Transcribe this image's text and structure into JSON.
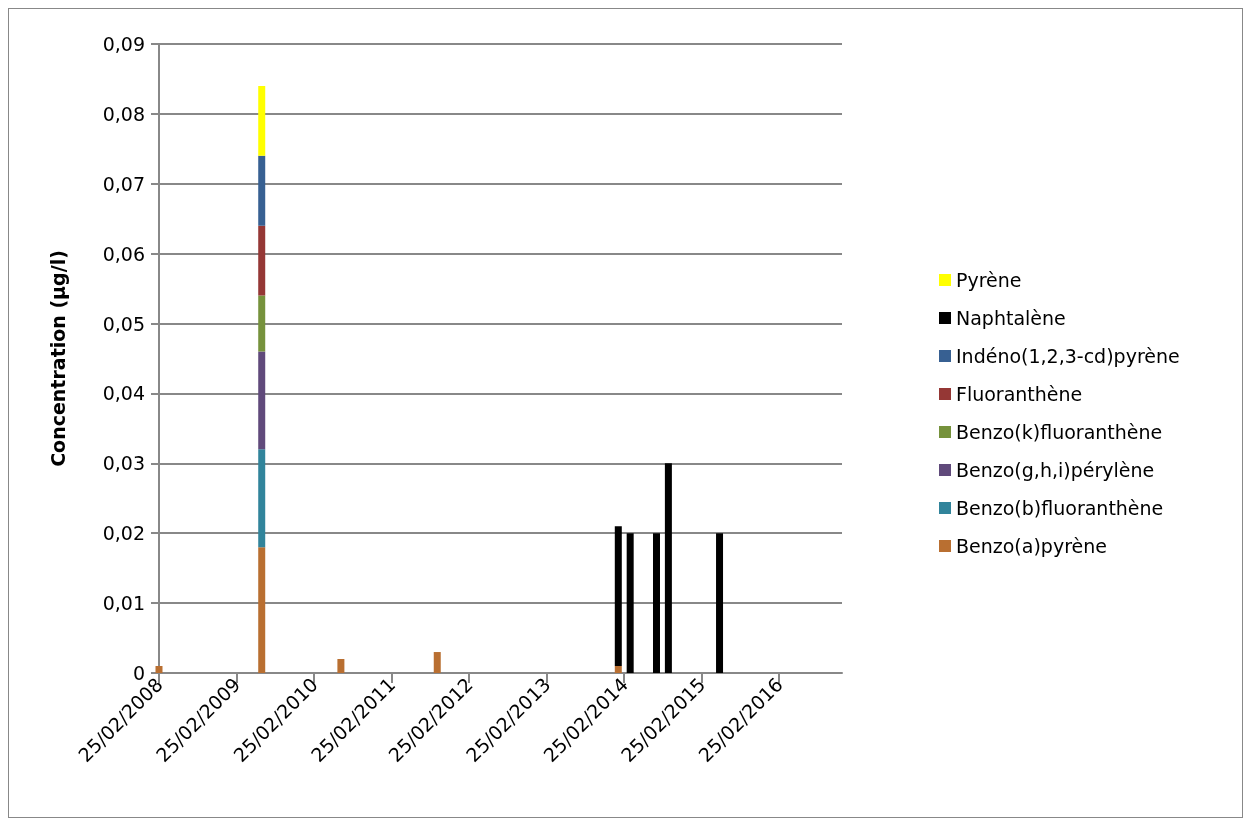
{
  "chart_data": {
    "type": "bar",
    "stacked": true,
    "ylabel": "Concentration (µg/l)",
    "x": [
      "2008-02-25",
      "2009-06-23",
      "2010-07-01",
      "2011-09-28",
      "2014-01-28",
      "2014-03-25",
      "2014-07-27",
      "2014-09-21",
      "2015-05-20"
    ],
    "series": [
      {
        "name": "Benzo(a)pyrène",
        "color": "#b96f31",
        "values": [
          0.001,
          0.018,
          0.002,
          0.003,
          0.001,
          null,
          null,
          null,
          null
        ]
      },
      {
        "name": "Benzo(b)fluoranthène",
        "color": "#31849b",
        "values": [
          null,
          0.014,
          null,
          null,
          null,
          null,
          null,
          null,
          null
        ]
      },
      {
        "name": "Benzo(g,h,i)pérylène",
        "color": "#604a7b",
        "values": [
          null,
          0.014,
          null,
          null,
          null,
          null,
          null,
          null,
          null
        ]
      },
      {
        "name": "Benzo(k)fluoranthène",
        "color": "#76923c",
        "values": [
          null,
          0.008,
          null,
          null,
          null,
          null,
          null,
          null,
          null
        ]
      },
      {
        "name": "Fluoranthène",
        "color": "#953735",
        "values": [
          null,
          0.01,
          null,
          null,
          null,
          null,
          null,
          null,
          null
        ]
      },
      {
        "name": "Indéno(1,2,3-cd)pyrène",
        "color": "#376092",
        "values": [
          null,
          0.01,
          null,
          null,
          null,
          null,
          null,
          null,
          null
        ]
      },
      {
        "name": "Naphtalène",
        "color": "#000000",
        "values": [
          null,
          null,
          null,
          null,
          0.02,
          0.02,
          0.02,
          0.03,
          0.02
        ]
      },
      {
        "name": "Pyrène",
        "color": "#ffff00",
        "values": [
          null,
          0.01,
          null,
          null,
          null,
          null,
          null,
          null,
          null
        ]
      }
    ],
    "xlim": [
      "2008-02-25",
      "2016-12-17"
    ],
    "xticks": [
      {
        "value": "2008-02-25",
        "label": "25/02/2008"
      },
      {
        "value": "2009-02-25",
        "label": "25/02/2009"
      },
      {
        "value": "2010-02-25",
        "label": "25/02/2010"
      },
      {
        "value": "2011-02-25",
        "label": "25/02/2011"
      },
      {
        "value": "2012-02-25",
        "label": "25/02/2012"
      },
      {
        "value": "2013-02-25",
        "label": "25/02/2013"
      },
      {
        "value": "2014-02-25",
        "label": "25/02/2014"
      },
      {
        "value": "2015-02-25",
        "label": "25/02/2015"
      },
      {
        "value": "2016-02-25",
        "label": "25/02/2016"
      }
    ],
    "ylim": [
      0,
      0.09
    ],
    "yticks": [
      0,
      {
        "value": 0.01,
        "label": "0,01"
      },
      {
        "value": 0.02,
        "label": "0,02"
      },
      {
        "value": 0.03,
        "label": "0,03"
      },
      {
        "value": 0.04,
        "label": "0,04"
      },
      {
        "value": 0.05,
        "label": "0,05"
      },
      {
        "value": 0.06,
        "label": "0,06"
      },
      {
        "value": 0.07,
        "label": "0,07"
      },
      {
        "value": 0.08,
        "label": "0,08"
      },
      {
        "value": 0.09,
        "label": "0,09"
      }
    ],
    "grid": "y",
    "legend": "right"
  }
}
